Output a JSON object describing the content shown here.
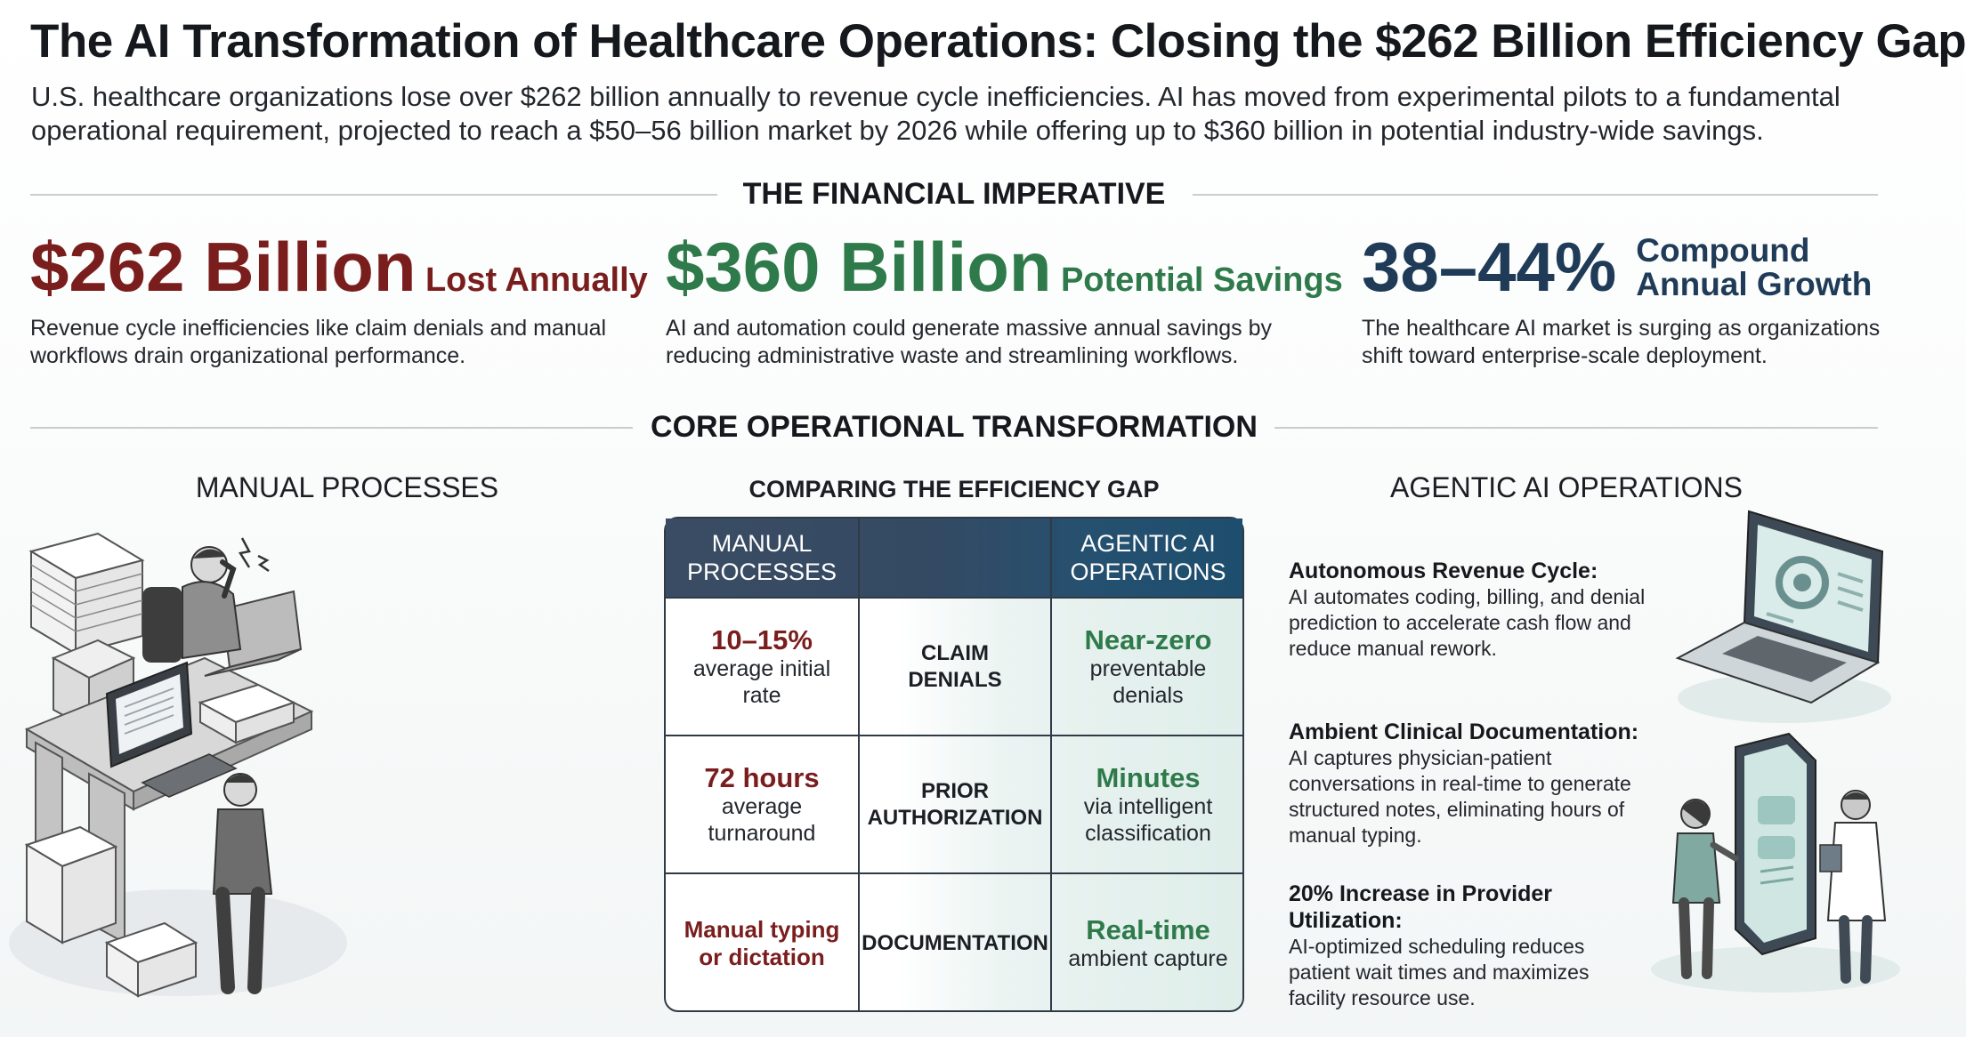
{
  "header": {
    "title": "The AI Transformation of Healthcare Operations: Closing the $262 Billion Efficiency Gap",
    "intro": "U.S. healthcare organizations lose over $262 billion annually to revenue cycle inefficiencies. AI has moved from experimental pilots to a fundamental operational requirement, projected to reach a $50–56 billion market by 2026 while offering up to $360 billion in potential industry-wide savings."
  },
  "financial": {
    "heading": "THE FINANCIAL IMPERATIVE",
    "stats": [
      {
        "value": "$262 Billion",
        "suffix": "Lost Annually",
        "description": "Revenue cycle inefficiencies like claim denials and manual workflows drain organizational performance."
      },
      {
        "value": "$360 Billion",
        "suffix": "Potential Savings",
        "description": "AI and automation could generate massive annual savings by reducing administrative waste and streamlining workflows."
      },
      {
        "value": "38–44%",
        "suffix_line1": "Compound",
        "suffix_line2": "Annual Growth",
        "description": "The healthcare AI market is surging as organizations shift toward enterprise-scale deployment."
      }
    ]
  },
  "transformation": {
    "heading": "CORE OPERATIONAL TRANSFORMATION",
    "left_heading": "MANUAL PROCESSES",
    "center_heading": "COMPARING THE EFFICIENCY GAP",
    "right_heading": "AGENTIC AI OPERATIONS"
  },
  "table": {
    "col_left_line1": "MANUAL",
    "col_left_line2": "PROCESSES",
    "col_right_line1": "AGENTIC AI",
    "col_right_line2": "OPERATIONS",
    "rows": [
      {
        "manual_value": "10–15%",
        "manual_sub1": "average initial",
        "manual_sub2": "rate",
        "mid1": "CLAIM",
        "mid2": "DENIALS",
        "ai_value": "Near-zero",
        "ai_sub1": "preventable",
        "ai_sub2": "denials"
      },
      {
        "manual_value": "72 hours",
        "manual_sub1": "average",
        "manual_sub2": "turnaround",
        "mid1": "PRIOR",
        "mid2": "AUTHORIZATION",
        "ai_value": "Minutes",
        "ai_sub1": "via intelligent",
        "ai_sub2": "classification"
      },
      {
        "manual_value1": "Manual typing",
        "manual_value2": "or dictation",
        "mid1": "DOCUMENTATION",
        "ai_value": "Real-time",
        "ai_sub1": "ambient capture"
      }
    ]
  },
  "features": [
    {
      "title": "Autonomous Revenue Cycle:",
      "body": "AI automates coding, billing, and denial prediction to accelerate cash flow and reduce manual rework."
    },
    {
      "title": "Ambient Clinical Documentation:",
      "body": "AI captures physician-patient conversations in real-time to generate structured notes, eliminating hours of manual typing."
    },
    {
      "title": "20% Increase in Provider Utilization:",
      "body": "AI-optimized scheduling reduces patient wait times and maximizes facility resource use."
    }
  ],
  "colors": {
    "loss_red": "#7a1d1d",
    "savings_green": "#2f7a4a",
    "growth_navy": "#1f3b57",
    "table_header": "#344a63"
  },
  "icons": {
    "left_illustration": "stressed-office-worker-with-paper-stacks",
    "right_illustration_top": "laptop-with-gear",
    "right_illustration_bottom": "phone-with-patient-and-doctor",
    "stress_icon": "lightning-stress-icon"
  }
}
